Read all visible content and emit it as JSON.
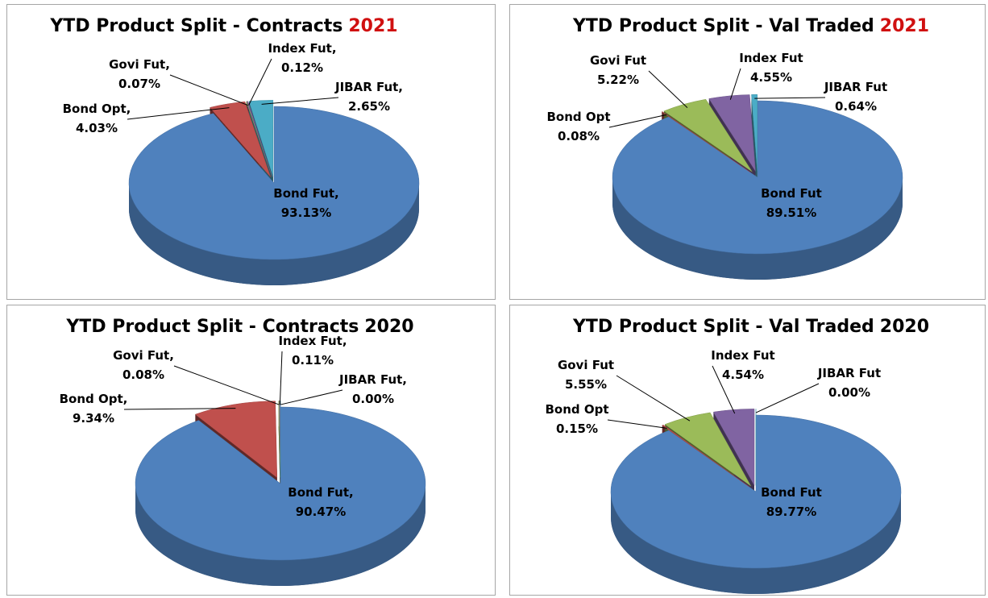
{
  "chart_data": [
    {
      "type": "pie",
      "title": "YTD Product Split - Contracts",
      "title_suffix": "2021",
      "title_suffix_color": "#d01010",
      "categories": [
        "Bond Fut,",
        "Bond Opt,",
        "Govi Fut,",
        "Index Fut,",
        "JIBAR Fut,"
      ],
      "values": [
        93.13,
        4.03,
        0.07,
        0.12,
        2.65
      ],
      "value_labels": [
        "93.13%",
        "4.03%",
        "0.07%",
        "0.12%",
        "2.65%"
      ],
      "colors": [
        "#4f81bd",
        "#c0504d",
        "#9bbb59",
        "#8064a2",
        "#4bacc6"
      ]
    },
    {
      "type": "pie",
      "title": "YTD Product Split - Val Traded",
      "title_suffix": "2021",
      "title_suffix_color": "#d01010",
      "categories": [
        "Bond Fut",
        "Bond Opt",
        "Govi Fut",
        "Index Fut",
        "JIBAR Fut"
      ],
      "values": [
        89.51,
        0.08,
        5.22,
        4.55,
        0.64
      ],
      "value_labels": [
        "89.51%",
        "0.08%",
        "5.22%",
        "4.55%",
        "0.64%"
      ],
      "colors": [
        "#4f81bd",
        "#c0504d",
        "#9bbb59",
        "#8064a2",
        "#4bacc6"
      ]
    },
    {
      "type": "pie",
      "title": "YTD Product Split - Contracts",
      "title_suffix": "2020",
      "title_suffix_color": "#000000",
      "categories": [
        "Bond Fut,",
        "Bond Opt,",
        "Govi Fut,",
        "Index Fut,",
        "JIBAR Fut,"
      ],
      "values": [
        90.47,
        9.34,
        0.08,
        0.11,
        0.0
      ],
      "value_labels": [
        "90.47%",
        "9.34%",
        "0.08%",
        "0.11%",
        "0.00%"
      ],
      "colors": [
        "#4f81bd",
        "#c0504d",
        "#9bbb59",
        "#8064a2",
        "#4bacc6"
      ]
    },
    {
      "type": "pie",
      "title": "YTD Product Split - Val Traded",
      "title_suffix": "2020",
      "title_suffix_color": "#000000",
      "categories": [
        "Bond Fut",
        "Bond Opt",
        "Govi Fut",
        "Index Fut",
        "JIBAR Fut"
      ],
      "values": [
        89.77,
        0.15,
        5.55,
        4.54,
        0.0
      ],
      "value_labels": [
        "89.77%",
        "0.15%",
        "5.55%",
        "4.54%",
        "0.00%"
      ],
      "colors": [
        "#4f81bd",
        "#c0504d",
        "#9bbb59",
        "#8064a2",
        "#4bacc6"
      ]
    }
  ]
}
